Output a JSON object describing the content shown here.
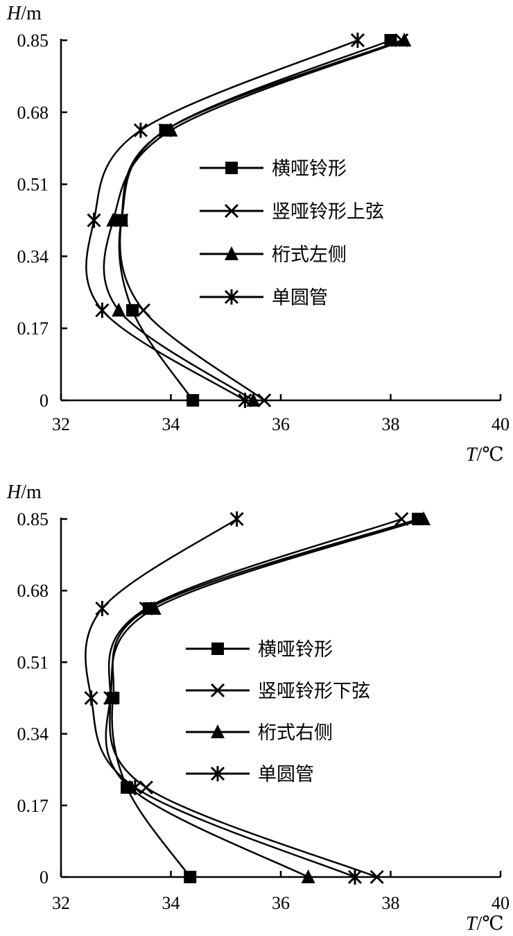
{
  "chart_data": [
    {
      "type": "line",
      "title": "",
      "ylabel": "H/m",
      "xlabel": "T/℃",
      "xlim": [
        32,
        40
      ],
      "ylim": [
        0,
        0.85
      ],
      "xticks": [
        "32",
        "34",
        "36",
        "38",
        "40"
      ],
      "yticks": [
        "0",
        "0.17",
        "0.34",
        "0.51",
        "0.68",
        "0.85"
      ],
      "legend_position": "center-right",
      "y": [
        0,
        0.2125,
        0.425,
        0.6375,
        0.85
      ],
      "series": [
        {
          "name": "横哑铃形",
          "marker": "square",
          "values": [
            34.4,
            33.3,
            33.1,
            33.9,
            38.0
          ]
        },
        {
          "name": "竖哑铃形上弦",
          "marker": "x",
          "values": [
            35.7,
            33.5,
            33.1,
            33.9,
            38.2
          ]
        },
        {
          "name": "桁式左侧",
          "marker": "triangle",
          "values": [
            35.5,
            33.05,
            32.95,
            34.0,
            38.25
          ]
        },
        {
          "name": "单圆管",
          "marker": "asterisk",
          "values": [
            35.35,
            32.75,
            32.6,
            33.45,
            37.4
          ]
        }
      ]
    },
    {
      "type": "line",
      "title": "",
      "ylabel": "H/m",
      "xlabel": "T/℃",
      "xlim": [
        32,
        40
      ],
      "ylim": [
        0,
        0.85
      ],
      "xticks": [
        "32",
        "34",
        "36",
        "38",
        "40"
      ],
      "yticks": [
        "0",
        "0.17",
        "0.34",
        "0.51",
        "0.68",
        "0.85"
      ],
      "legend_position": "center-right",
      "y": [
        0,
        0.2125,
        0.425,
        0.6375,
        0.85
      ],
      "series": [
        {
          "name": "横哑铃形",
          "marker": "square",
          "values": [
            34.35,
            33.2,
            32.95,
            33.6,
            38.5
          ]
        },
        {
          "name": "竖哑铃形下弦",
          "marker": "x",
          "values": [
            37.75,
            33.55,
            32.9,
            33.55,
            38.2
          ]
        },
        {
          "name": "桁式右侧",
          "marker": "triangle",
          "values": [
            36.5,
            33.25,
            32.9,
            33.7,
            38.6
          ]
        },
        {
          "name": "单圆管",
          "marker": "asterisk",
          "values": [
            37.35,
            33.35,
            32.55,
            32.75,
            35.2
          ]
        }
      ]
    }
  ]
}
